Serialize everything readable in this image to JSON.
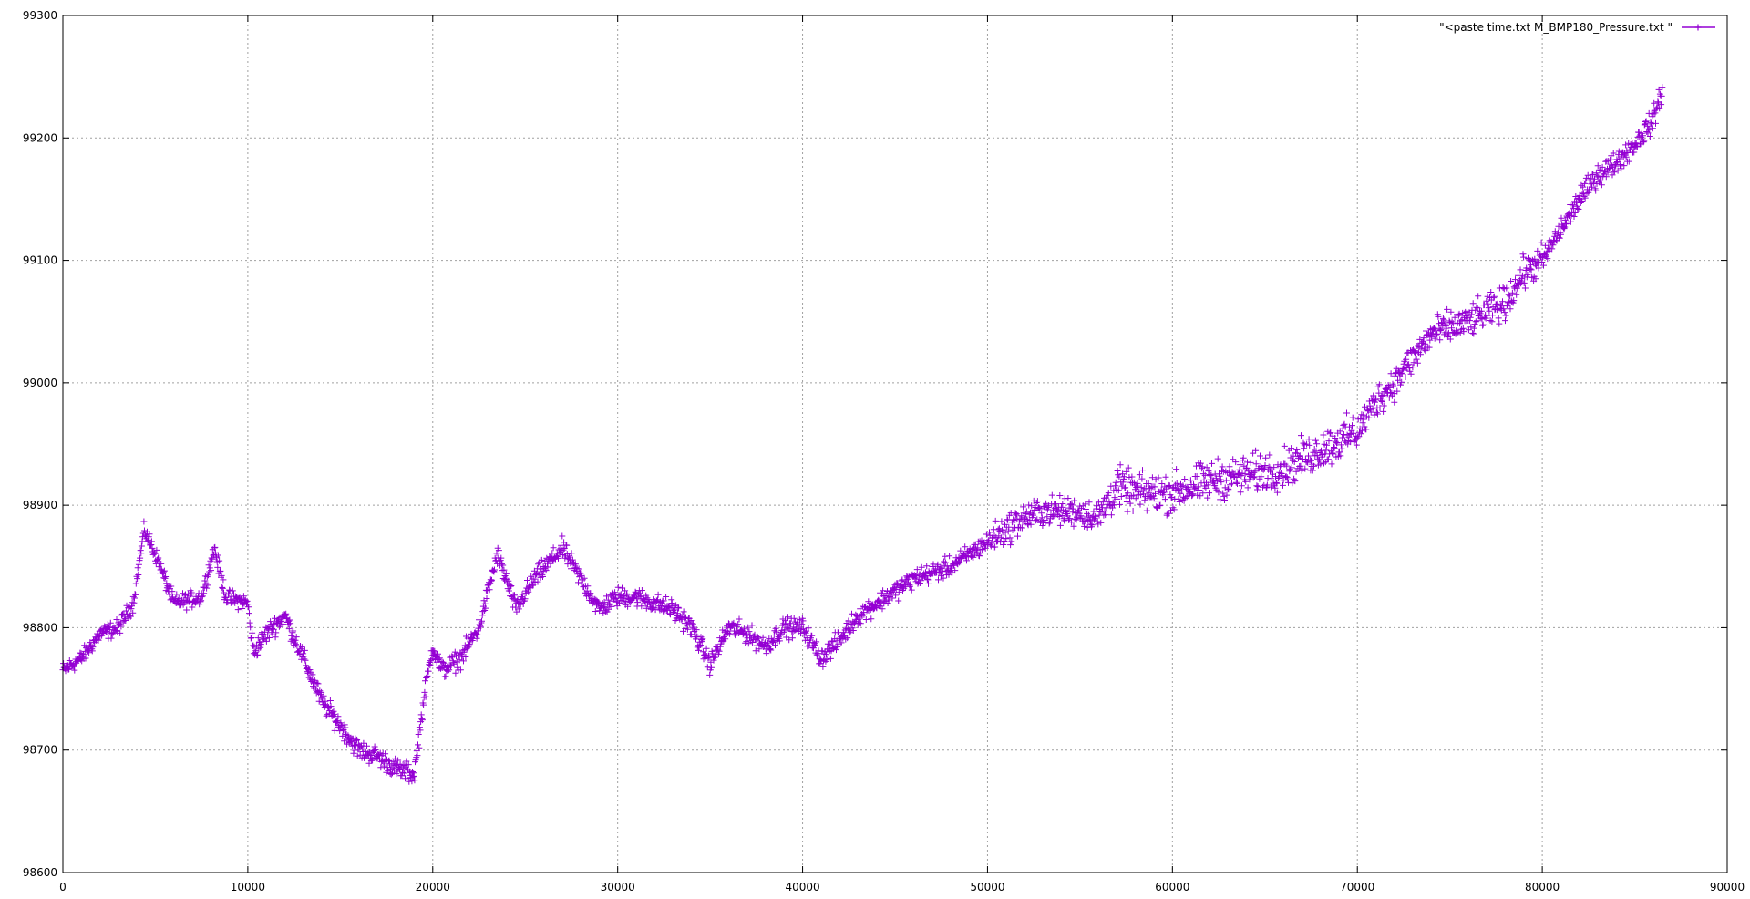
{
  "chart_data": {
    "type": "scatter",
    "title": "",
    "xlabel": "",
    "ylabel": "",
    "xlim": [
      0,
      90000
    ],
    "ylim": [
      98600,
      99300
    ],
    "x_ticks": [
      0,
      10000,
      20000,
      30000,
      40000,
      50000,
      60000,
      70000,
      80000,
      90000
    ],
    "y_ticks": [
      98600,
      98700,
      98800,
      98900,
      99000,
      99100,
      99200,
      99300
    ],
    "x_tick_labels": [
      "0",
      "10000",
      "20000",
      "30000",
      "40000",
      "50000",
      "60000",
      "70000",
      "80000",
      "90000"
    ],
    "y_tick_labels": [
      "98600",
      "98700",
      "98800",
      "98900",
      "99000",
      "99100",
      "99200",
      "99300"
    ],
    "grid": true,
    "legend_position": "top-right",
    "series": [
      {
        "name": "\"<paste time.txt M_BMP180_Pressure.txt \"",
        "color": "#9400d3",
        "marker": "plus",
        "trend": [
          [
            0,
            98765
          ],
          [
            1000,
            98775
          ],
          [
            2000,
            98795
          ],
          [
            3000,
            98800
          ],
          [
            3800,
            98820
          ],
          [
            4400,
            98880
          ],
          [
            5000,
            98860
          ],
          [
            6000,
            98820
          ],
          [
            7500,
            98825
          ],
          [
            8200,
            98865
          ],
          [
            8800,
            98825
          ],
          [
            10000,
            98820
          ],
          [
            10300,
            98780
          ],
          [
            11000,
            98795
          ],
          [
            12000,
            98810
          ],
          [
            13000,
            98775
          ],
          [
            14000,
            98740
          ],
          [
            15000,
            98720
          ],
          [
            16000,
            98700
          ],
          [
            17000,
            98695
          ],
          [
            18000,
            98685
          ],
          [
            19000,
            98680
          ],
          [
            19500,
            98740
          ],
          [
            20000,
            98785
          ],
          [
            20500,
            98765
          ],
          [
            21500,
            98775
          ],
          [
            22500,
            98800
          ],
          [
            23500,
            98860
          ],
          [
            24500,
            98815
          ],
          [
            25500,
            98840
          ],
          [
            27000,
            98865
          ],
          [
            28000,
            98840
          ],
          [
            29000,
            98815
          ],
          [
            30000,
            98825
          ],
          [
            31000,
            98825
          ],
          [
            33000,
            98815
          ],
          [
            34000,
            98800
          ],
          [
            35000,
            98770
          ],
          [
            36000,
            98800
          ],
          [
            37000,
            98795
          ],
          [
            38000,
            98785
          ],
          [
            39000,
            98800
          ],
          [
            40000,
            98800
          ],
          [
            41000,
            98775
          ],
          [
            42000,
            98790
          ],
          [
            43000,
            98810
          ],
          [
            44000,
            98820
          ],
          [
            45000,
            98830
          ],
          [
            46000,
            98840
          ],
          [
            48000,
            98850
          ],
          [
            50000,
            98870
          ],
          [
            52000,
            98890
          ],
          [
            53000,
            98895
          ],
          [
            54000,
            98895
          ],
          [
            55000,
            98895
          ],
          [
            56000,
            98890
          ],
          [
            57000,
            98915
          ],
          [
            58000,
            98910
          ],
          [
            60000,
            98910
          ],
          [
            62000,
            98920
          ],
          [
            64000,
            98925
          ],
          [
            66000,
            98930
          ],
          [
            68000,
            98945
          ],
          [
            70000,
            98960
          ],
          [
            71000,
            98985
          ],
          [
            72000,
            99000
          ],
          [
            73000,
            99020
          ],
          [
            74000,
            99040
          ],
          [
            76000,
            99050
          ],
          [
            78000,
            99065
          ],
          [
            79000,
            99090
          ],
          [
            80000,
            99100
          ],
          [
            81000,
            99125
          ],
          [
            82000,
            99150
          ],
          [
            83000,
            99170
          ],
          [
            84000,
            99180
          ],
          [
            85000,
            99195
          ],
          [
            86000,
            99215
          ],
          [
            86500,
            99240
          ]
        ]
      }
    ]
  }
}
